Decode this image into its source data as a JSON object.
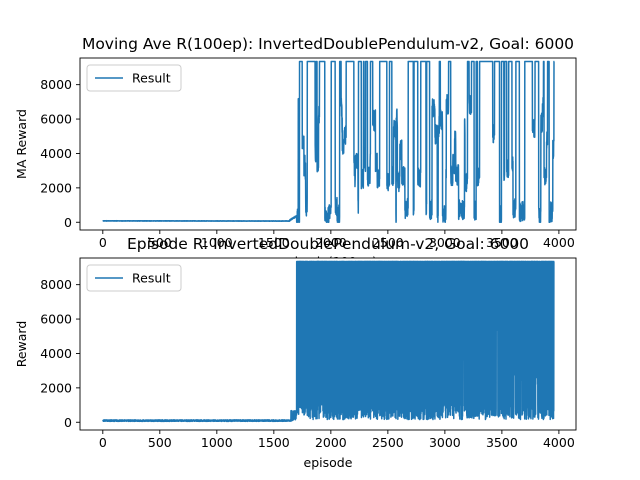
{
  "colors": {
    "series": "#1f77b4",
    "frame": "#000000",
    "legend_border": "#cccccc"
  },
  "chart_data": [
    {
      "type": "line",
      "title": "Moving Ave R(100ep): InvertedDoublePendulum-v2, Goal: 6000",
      "xlabel": "episode(100ep)",
      "ylabel": "MA Reward",
      "xlim": [
        -200,
        4150
      ],
      "ylim": [
        -450,
        9550
      ],
      "xticks": [
        0,
        500,
        1000,
        1500,
        2000,
        2500,
        3000,
        3500,
        4000
      ],
      "yticks": [
        0,
        2000,
        4000,
        6000,
        8000
      ],
      "legend": {
        "position": "top-left",
        "entries": [
          "Result"
        ]
      },
      "series": [
        {
          "name": "Result",
          "pattern": "moving-average",
          "n_points": 3960,
          "baseline": 80,
          "regime_change_x": 1700,
          "max": 9350,
          "x_start": 0,
          "x_end": 3960,
          "key_points": [
            [
              0,
              80
            ],
            [
              500,
              70
            ],
            [
              1000,
              60
            ],
            [
              1500,
              65
            ],
            [
              1650,
              300
            ],
            [
              1700,
              7700
            ],
            [
              1720,
              2000
            ],
            [
              1740,
              9350
            ],
            [
              1850,
              400
            ],
            [
              1900,
              9350
            ],
            [
              2100,
              300
            ],
            [
              2300,
              9300
            ],
            [
              2400,
              2500
            ],
            [
              2600,
              9300
            ],
            [
              2750,
              300
            ],
            [
              2850,
              9300
            ],
            [
              2900,
              200
            ],
            [
              3000,
              9350
            ],
            [
              3100,
              2500
            ],
            [
              3300,
              9300
            ],
            [
              3400,
              100
            ],
            [
              3500,
              300
            ],
            [
              3600,
              9300
            ],
            [
              3700,
              600
            ],
            [
              3800,
              9300
            ],
            [
              3900,
              2600
            ],
            [
              3960,
              5000
            ]
          ]
        }
      ]
    },
    {
      "type": "line",
      "title": "Episode R: InvertedDoublePendulum-v2, Goal: 6000",
      "xlabel": "episode",
      "ylabel": "Reward",
      "xlim": [
        -200,
        4150
      ],
      "ylim": [
        -450,
        9550
      ],
      "xticks": [
        0,
        500,
        1000,
        1500,
        2000,
        2500,
        3000,
        3500,
        4000
      ],
      "yticks": [
        0,
        2000,
        4000,
        6000,
        8000
      ],
      "legend": {
        "position": "top-left",
        "entries": [
          "Result"
        ]
      },
      "series": [
        {
          "name": "Result",
          "pattern": "raw-episode",
          "n_points": 3960,
          "baseline": 80,
          "regime_change_x": 1700,
          "max": 9350,
          "x_start": 0,
          "x_end": 3960,
          "key_points": [
            [
              0,
              80
            ],
            [
              1600,
              80
            ],
            [
              1650,
              500
            ],
            [
              1700,
              9350
            ],
            [
              1800,
              300
            ],
            [
              2000,
              9350
            ],
            [
              2500,
              500
            ],
            [
              3000,
              9350
            ],
            [
              3400,
              300
            ],
            [
              3500,
              9350
            ],
            [
              3960,
              9350
            ]
          ]
        }
      ]
    }
  ]
}
